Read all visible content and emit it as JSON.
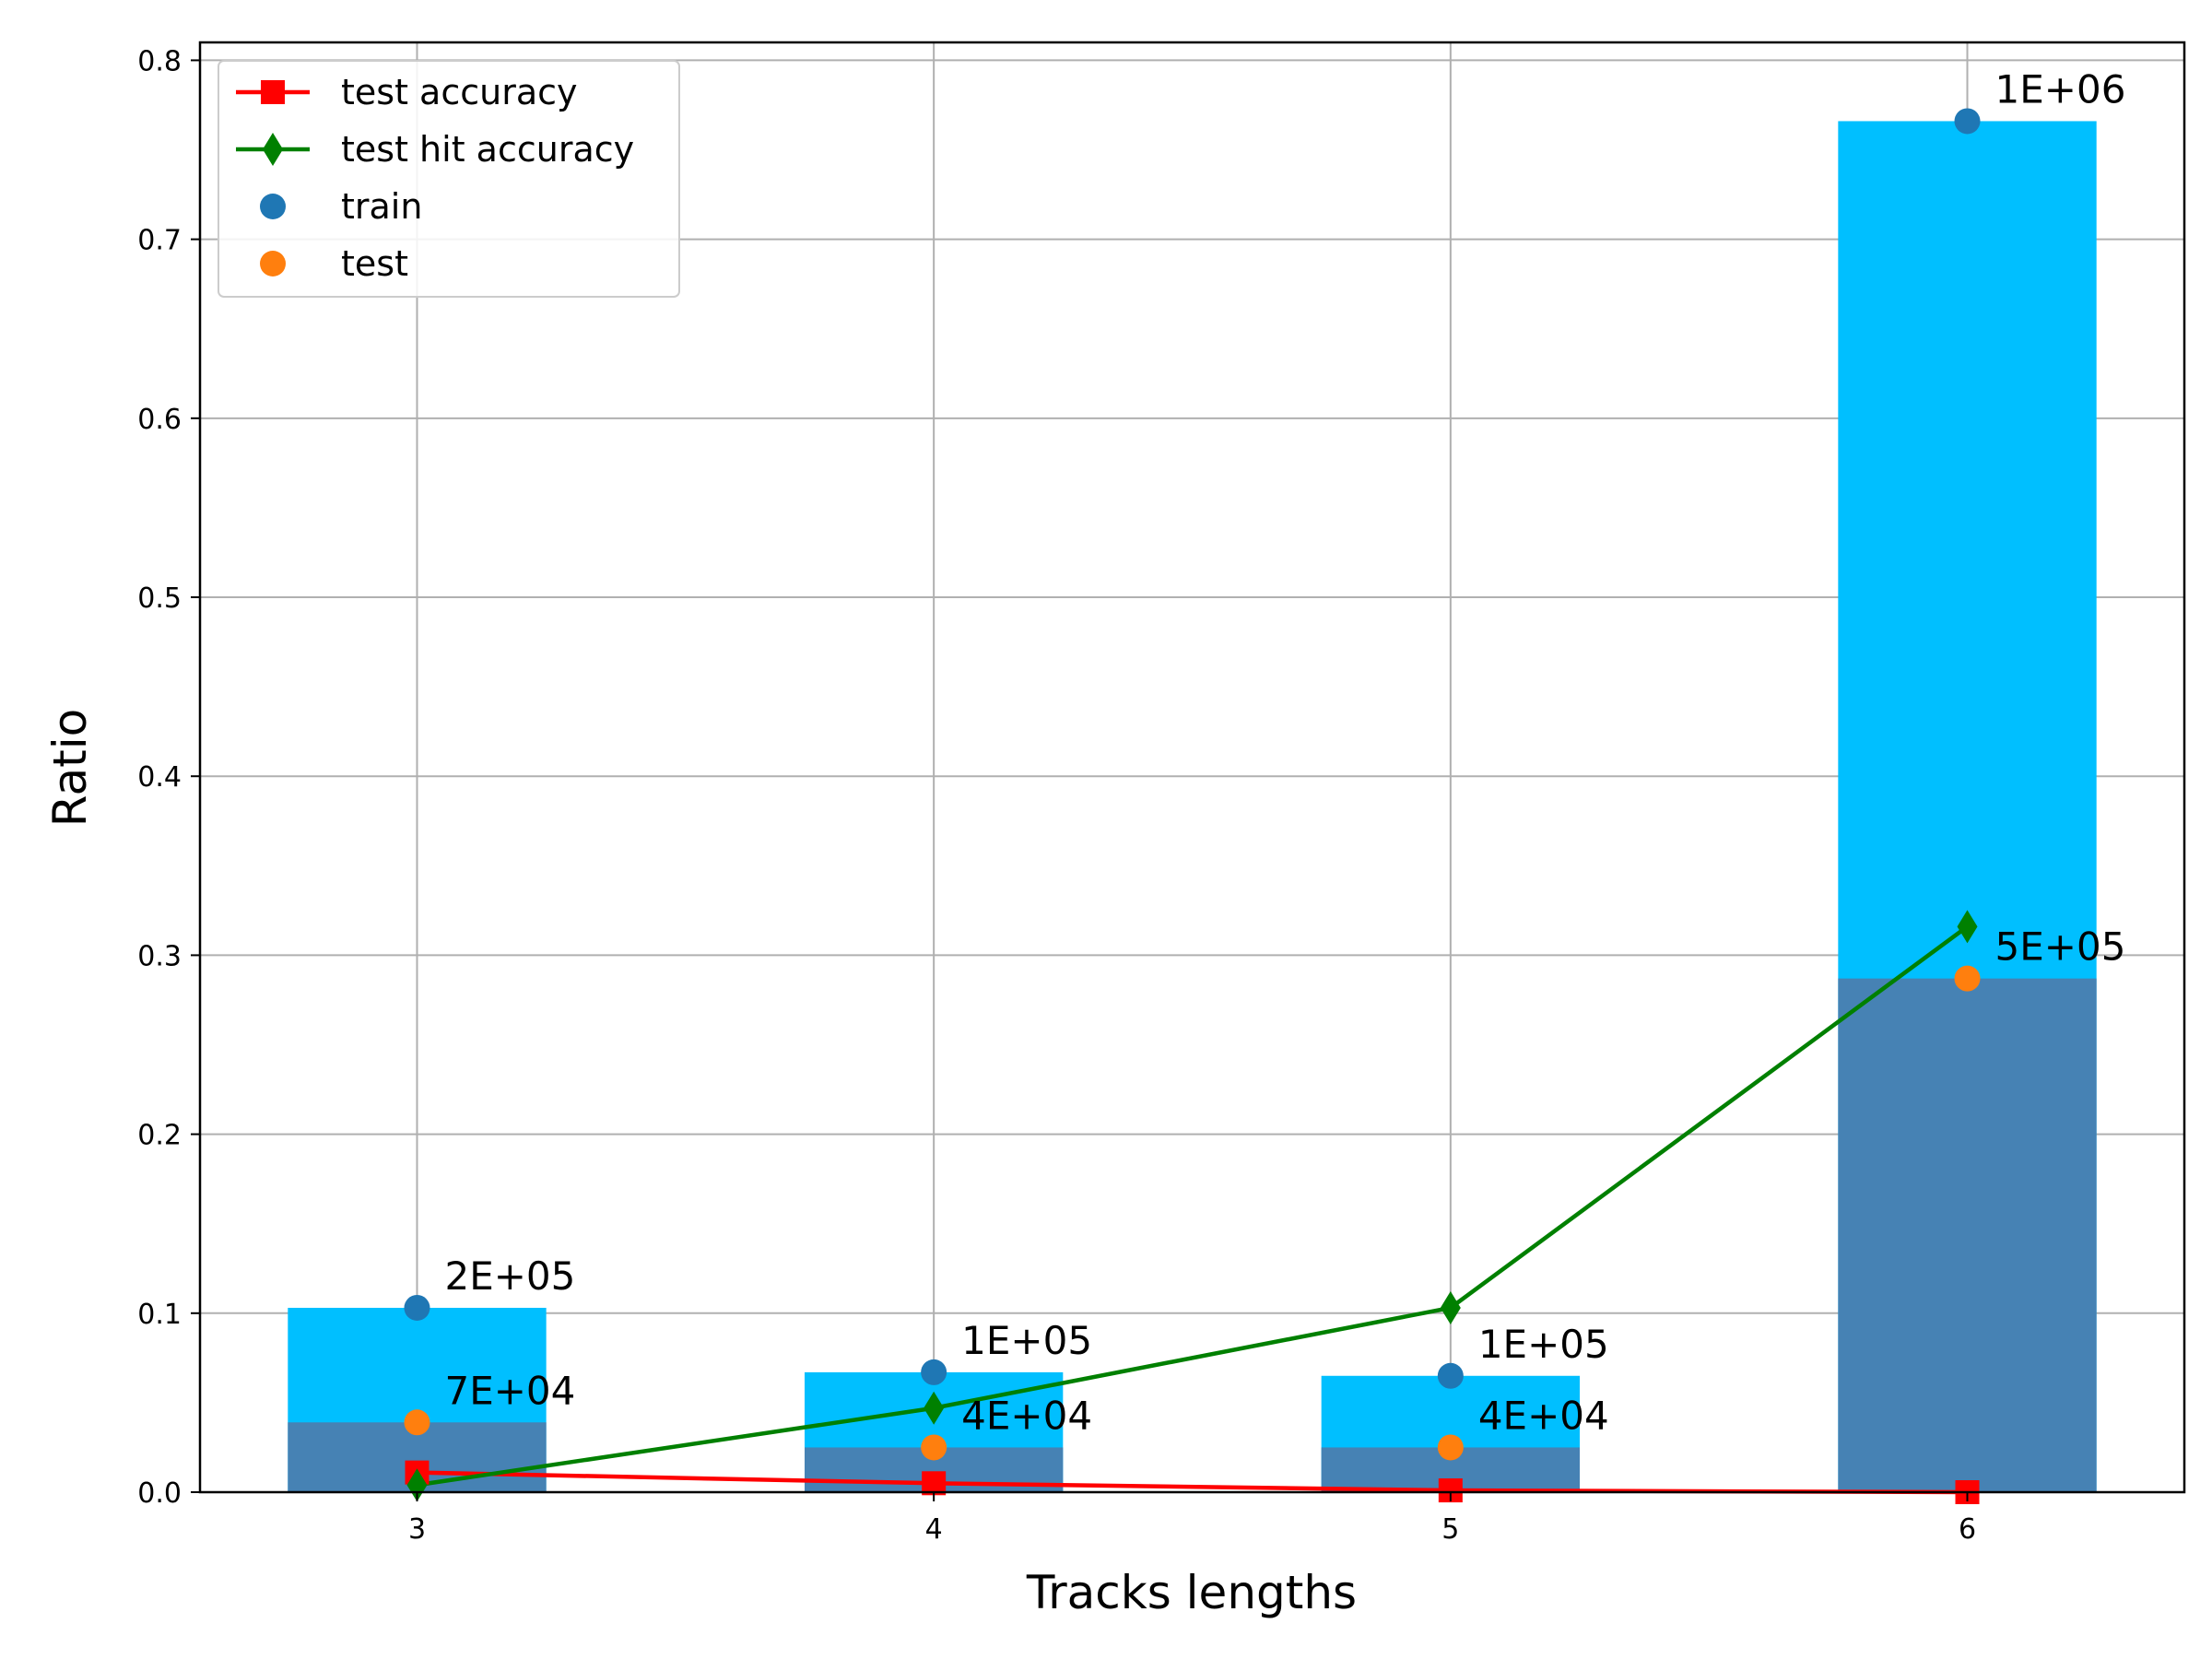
{
  "chart_data": {
    "type": "bar",
    "xlabel": "Tracks lengths",
    "ylabel": "Ratio",
    "categories": [
      "3",
      "4",
      "5",
      "6"
    ],
    "x": [
      3,
      4,
      5,
      6
    ],
    "ylim": [
      0,
      0.81
    ],
    "xlim": [
      2.58,
      6.42
    ],
    "y_ticks": [
      0.0,
      0.1,
      0.2,
      0.3,
      0.4,
      0.5,
      0.6,
      0.7,
      0.8
    ],
    "y_tick_labels": [
      "0.0",
      "0.1",
      "0.2",
      "0.3",
      "0.4",
      "0.5",
      "0.6",
      "0.7",
      "0.8"
    ],
    "grid": true,
    "legend_position": "top-left",
    "bars": {
      "train": {
        "values": [
          0.103,
          0.067,
          0.065,
          0.766
        ],
        "color": "#00bfff"
      },
      "test": {
        "values": [
          0.039,
          0.025,
          0.025,
          0.287
        ],
        "color": "#4682b4"
      }
    },
    "series": [
      {
        "name": "test accuracy",
        "kind": "line",
        "marker": "square",
        "color": "#ff0000",
        "values": [
          0.011,
          0.005,
          0.001,
          0.0
        ]
      },
      {
        "name": "test hit accuracy",
        "kind": "line",
        "marker": "diamond",
        "color": "#008000",
        "values": [
          0.004,
          0.047,
          0.103,
          0.316
        ]
      },
      {
        "name": "train",
        "kind": "scatter",
        "marker": "circle",
        "color": "#1f77b4",
        "values": [
          0.103,
          0.067,
          0.065,
          0.766
        ]
      },
      {
        "name": "test",
        "kind": "scatter",
        "marker": "circle",
        "color": "#ff7f0e",
        "values": [
          0.039,
          0.025,
          0.025,
          0.287
        ]
      }
    ],
    "annotations": {
      "train": [
        "2E+05",
        "1E+05",
        "1E+05",
        "1E+06"
      ],
      "test": [
        "7E+04",
        "4E+04",
        "4E+04",
        "5E+05"
      ]
    }
  }
}
